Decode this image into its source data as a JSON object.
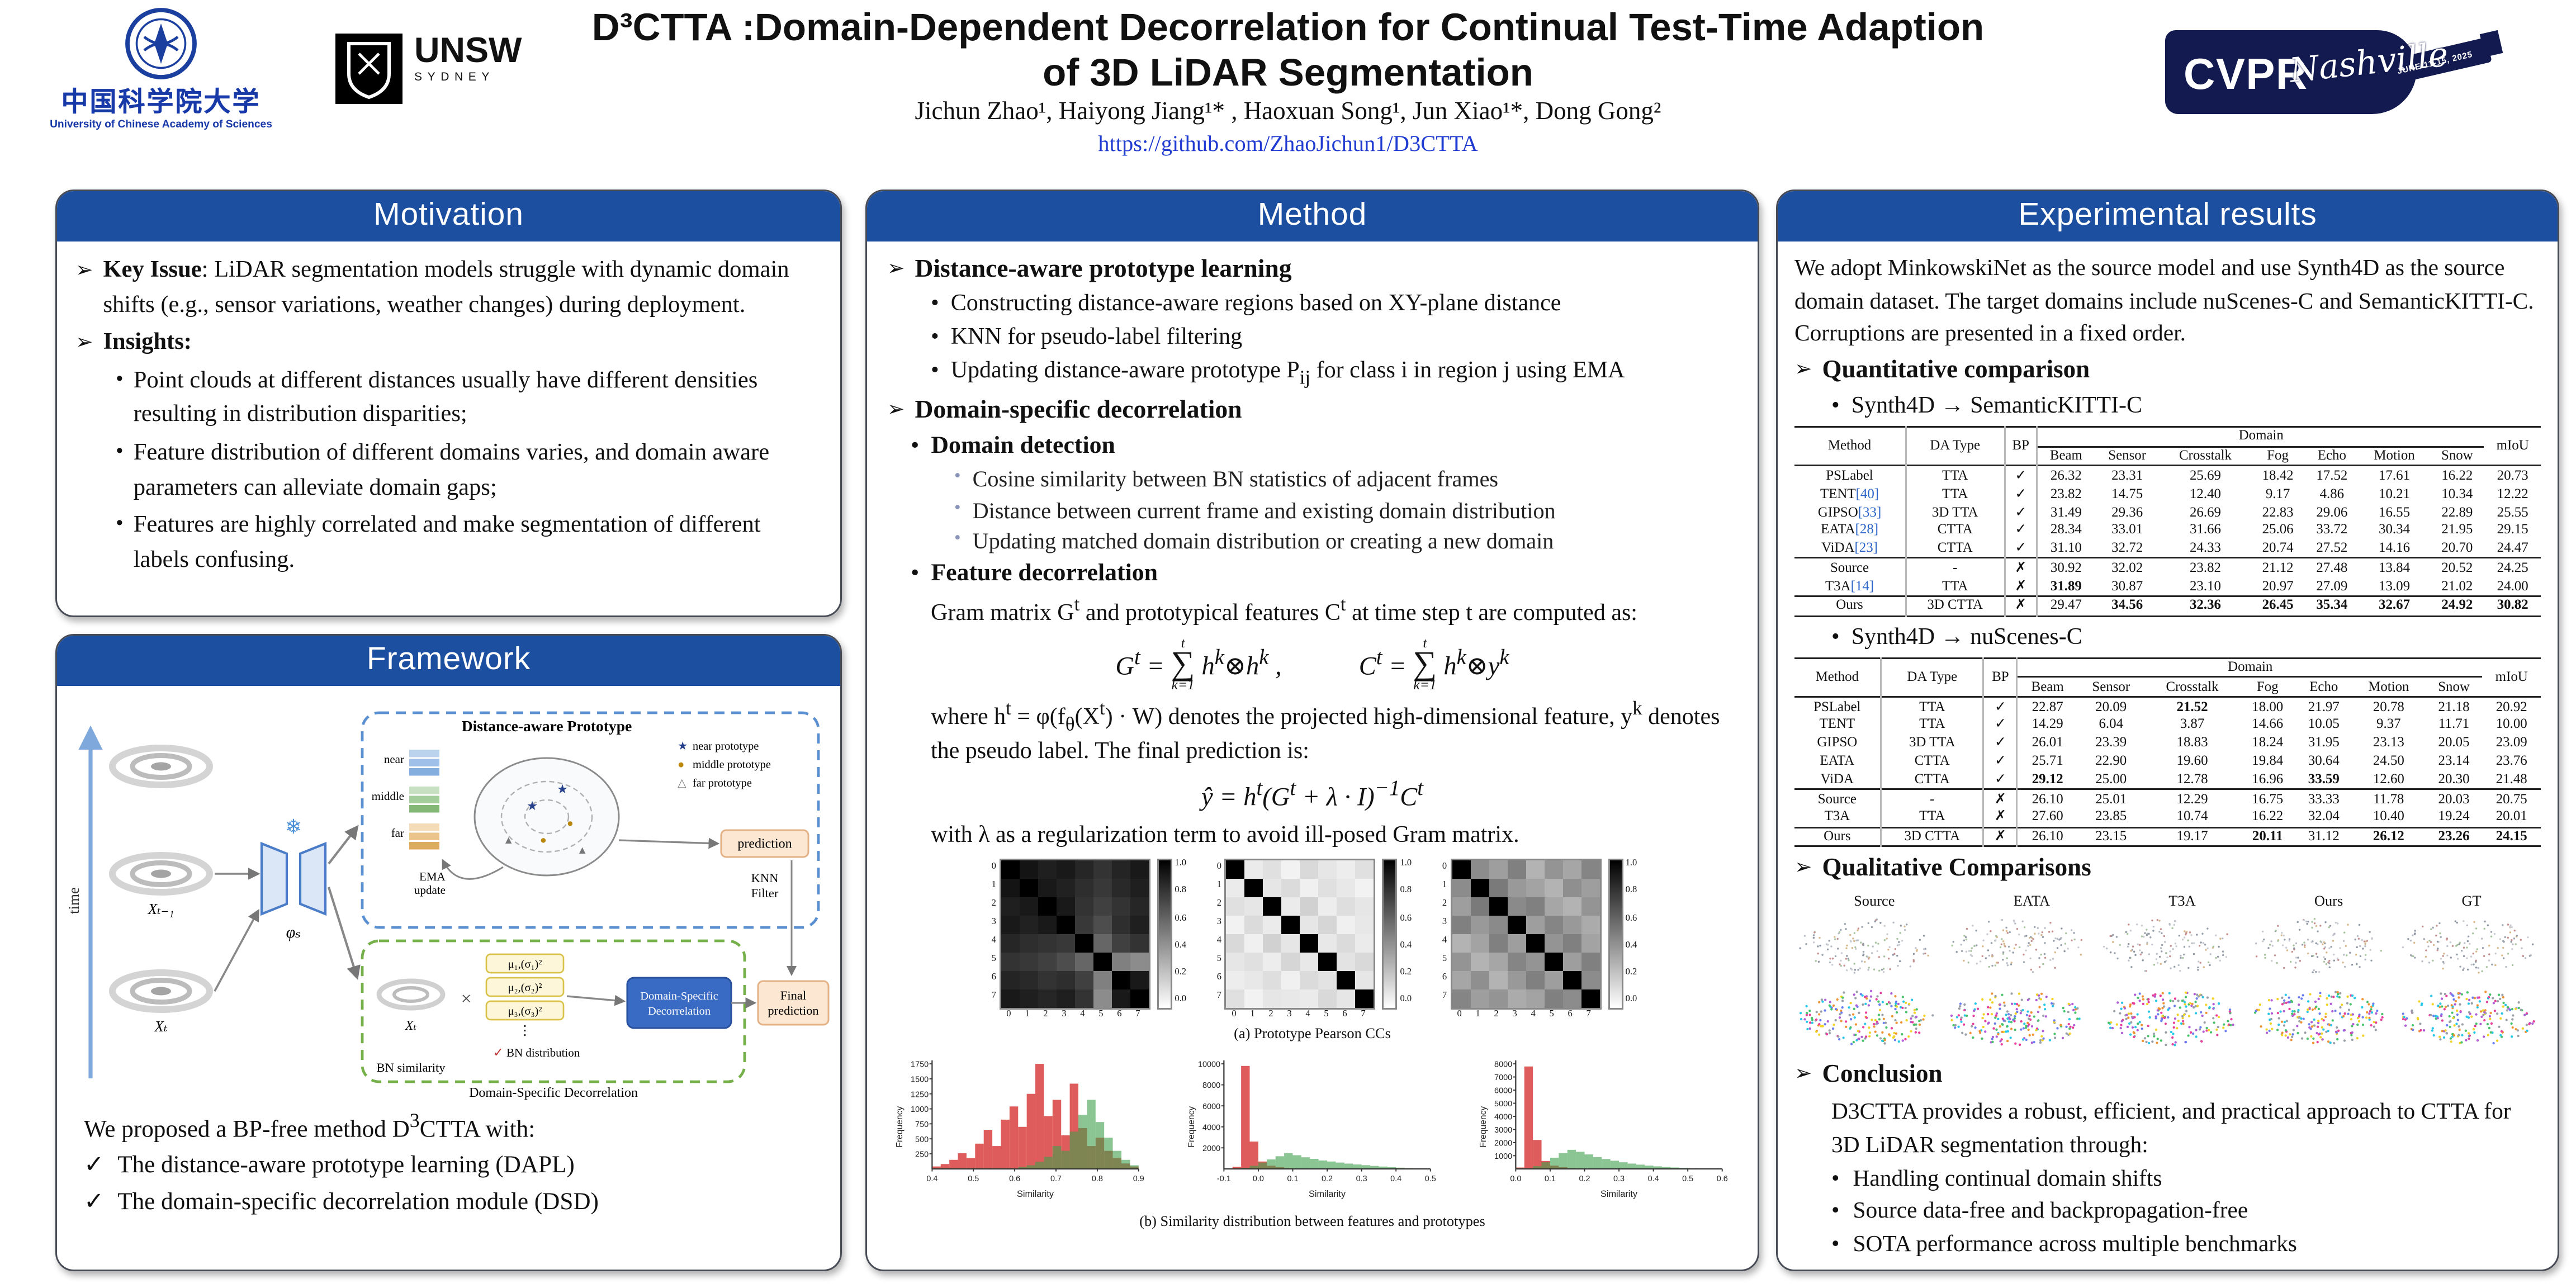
{
  "glyphs": {
    "arrow": "➢",
    "bullet": "•",
    "check": "✓",
    "cross": "✗",
    "sum": "∑"
  },
  "header": {
    "title_line1": "D³CTTA :Domain-Dependent Decorrelation for Continual Test-Time Adaption",
    "title_line2": "of 3D LiDAR Segmentation",
    "authors": "Jichun Zhao¹, Haiyong Jiang¹* , Haoxuan Song¹, Jun Xiao¹*, Dong Gong²",
    "link": "https://github.com/ZhaoJichun1/D3CTTA",
    "ucas": {
      "cn": "中国科学院大学",
      "en": "University of Chinese Academy of Sciences"
    },
    "unsw": {
      "name": "UNSW",
      "sub": "SYDNEY"
    },
    "cvpr": {
      "name": "CVPR",
      "city": "Nashville",
      "date": "JUNE 11-15, 2025"
    }
  },
  "motivation": {
    "title": "Motivation",
    "key_issue_label": "Key Issue",
    "key_issue": ": LiDAR segmentation models struggle with dynamic domain shifts (e.g., sensor variations, weather changes) during deployment.",
    "insights_label": "Insights:",
    "insights": [
      "Point clouds at different distances usually have different densities resulting in distribution disparities;",
      "Feature distribution of different domains varies, and domain aware parameters can alleviate domain gaps;",
      "Features are highly correlated and make segmentation of different labels confusing."
    ]
  },
  "framework": {
    "title": "Framework",
    "labels": {
      "time": "time",
      "xt1": "Xₜ₋₁",
      "xt": "Xₜ",
      "phi": "φₛ",
      "snow": "❄",
      "dap_title": "Distance-aware Prototype",
      "near": "near",
      "middle": "middle",
      "far": "far",
      "ema1": "EMA",
      "ema2": "update",
      "prediction": "prediction",
      "knn1": "KNN",
      "knn2": "Filter",
      "mu1": "μ₁,(σ₁)²",
      "mu2": "μ₂,(σ₂)²",
      "mu3": "μ₃,(σ₃)²",
      "dots": "⋮",
      "bn_check": "✓",
      "bn_dist": "BN distribution",
      "bn_sim": "BN similarity",
      "times": "×",
      "dsd1": "Domain-Specific",
      "dsd2": "Decorrelation",
      "final1": "Final",
      "final2": "prediction",
      "module_caption": "Domain-Specific Decorrelation"
    },
    "legend": {
      "m1": "★",
      "t1": "near prototype",
      "m2": "●",
      "t2": "middle prototype",
      "m3": "△",
      "t3": "far prototype"
    },
    "markers": {
      "star": "★",
      "dot": "●",
      "tri": "▲"
    },
    "summary_intro": "We proposed a BP-free method D^{3}CTTA with:",
    "summary_items": [
      "The distance-aware prototype learning (DAPL)",
      "The domain-specific decorrelation module (DSD)"
    ]
  },
  "method": {
    "title": "Method",
    "s1_title": "Distance-aware prototype learning",
    "s1_items": [
      "Constructing distance-aware regions based on XY-plane distance",
      "KNN for pseudo-label filtering",
      "Updating distance-aware prototype P_{ij} for class i in region j using EMA"
    ],
    "s2_title": "Domain-specific decorrelation",
    "s2a_title": "Domain detection",
    "s2a_items": [
      "Cosine similarity between BN statistics of adjacent frames",
      "Distance between current frame and existing domain distribution",
      "Updating matched domain distribution or creating a new domain"
    ],
    "s2b_title": "Feature decorrelation",
    "s2b_intro": "Gram matrix G^{t} and prototypical features C^{t} at time step t are computed as:",
    "f1a": "G^{t} =",
    "f1b": "h^{k}⊗h^{k} ,",
    "f1c": "C^{t} =",
    "f1d": "h^{k}⊗y^{k}",
    "sum_top": "t",
    "sum_bot": "k=1",
    "where_text": "where h^{t} = φ(f_{θ}(X^{t}) · W) denotes the projected high-dimensional feature, y^{k} denotes the pseudo label. The final prediction is:",
    "formula2": "ŷ = h^{t}(G^{t} + λ · I)^{−1}C^{t}",
    "lambda_text": "with λ as a regularization term to avoid ill-posed Gram matrix.",
    "fig_a_caption": "(a) Prototype Pearson CCs",
    "fig_b_caption": "(b) Similarity distribution between features and prototypes",
    "hm_ticks": [
      "0",
      "1",
      "2",
      "3",
      "4",
      "5",
      "6",
      "7"
    ],
    "cbar_labels": [
      "1.0",
      "0.8",
      "0.6",
      "0.4",
      "0.2",
      "0.0"
    ],
    "heatmaps": [
      [
        [
          1,
          0.92,
          0.88,
          0.9,
          0.85,
          0.8,
          0.86,
          0.9
        ],
        [
          0.92,
          1,
          0.9,
          0.87,
          0.82,
          0.78,
          0.84,
          0.88
        ],
        [
          0.88,
          0.9,
          1,
          0.9,
          0.8,
          0.75,
          0.8,
          0.85
        ],
        [
          0.9,
          0.87,
          0.9,
          1,
          0.78,
          0.7,
          0.82,
          0.88
        ],
        [
          0.85,
          0.82,
          0.8,
          0.78,
          1,
          0.6,
          0.75,
          0.8
        ],
        [
          0.8,
          0.78,
          0.75,
          0.7,
          0.6,
          1,
          0.5,
          0.45
        ],
        [
          0.86,
          0.84,
          0.8,
          0.82,
          0.75,
          0.5,
          1,
          0.9
        ],
        [
          0.9,
          0.88,
          0.85,
          0.88,
          0.8,
          0.45,
          0.9,
          1
        ]
      ],
      [
        [
          1,
          0.08,
          0.12,
          0.05,
          0.15,
          0.1,
          0.07,
          0.12
        ],
        [
          0.08,
          1,
          0.1,
          0.14,
          0.06,
          0.12,
          0.09,
          0.05
        ],
        [
          0.12,
          0.1,
          1,
          0.08,
          0.18,
          0.07,
          0.13,
          0.1
        ],
        [
          0.05,
          0.14,
          0.08,
          1,
          0.1,
          0.16,
          0.06,
          0.09
        ],
        [
          0.15,
          0.06,
          0.18,
          0.1,
          1,
          0.09,
          0.14,
          0.08
        ],
        [
          0.1,
          0.12,
          0.07,
          0.16,
          0.09,
          1,
          0.11,
          0.15
        ],
        [
          0.07,
          0.09,
          0.13,
          0.06,
          0.14,
          0.11,
          1,
          0.1
        ],
        [
          0.12,
          0.05,
          0.1,
          0.09,
          0.08,
          0.15,
          0.1,
          1
        ]
      ],
      [
        [
          1,
          0.45,
          0.38,
          0.5,
          0.3,
          0.42,
          0.35,
          0.48
        ],
        [
          0.45,
          1,
          0.52,
          0.4,
          0.36,
          0.3,
          0.44,
          0.38
        ],
        [
          0.38,
          0.52,
          1,
          0.46,
          0.5,
          0.35,
          0.3,
          0.42
        ],
        [
          0.5,
          0.4,
          0.46,
          1,
          0.38,
          0.48,
          0.4,
          0.33
        ],
        [
          0.3,
          0.36,
          0.5,
          0.38,
          1,
          0.42,
          0.5,
          0.36
        ],
        [
          0.42,
          0.3,
          0.35,
          0.48,
          0.42,
          1,
          0.38,
          0.5
        ],
        [
          0.35,
          0.44,
          0.3,
          0.4,
          0.5,
          0.38,
          1,
          0.45
        ],
        [
          0.48,
          0.38,
          0.42,
          0.33,
          0.36,
          0.5,
          0.45,
          1
        ]
      ]
    ],
    "hist_ylabel": "Frequency",
    "hist_xlabel": "Similarity",
    "hists": [
      {
        "max": 1750,
        "yticks": [
          "1750",
          "1500",
          "1250",
          "1000",
          "750",
          "500",
          "250"
        ],
        "xticks": [
          "0.4",
          "0.5",
          "0.6",
          "0.7",
          "0.8",
          "0.9"
        ],
        "red": [
          40,
          80,
          150,
          260,
          180,
          420,
          650,
          380,
          820,
          1040,
          700,
          1250,
          1750,
          880,
          1150,
          560,
          1420,
          680,
          380,
          520,
          300,
          180,
          90,
          40
        ],
        "green": [
          0,
          0,
          0,
          0,
          0,
          0,
          0,
          0,
          0,
          0,
          30,
          60,
          120,
          200,
          380,
          300,
          620,
          900,
          1150,
          780,
          520,
          300,
          150,
          60
        ]
      },
      {
        "max": 10000,
        "yticks": [
          "10000",
          "8000",
          "6000",
          "4000",
          "2000"
        ],
        "xticks": [
          "-0.1",
          "0.0",
          "0.1",
          "0.2",
          "0.3",
          "0.4",
          "0.5"
        ],
        "red": [
          0,
          200,
          9800,
          2600,
          700,
          300,
          150,
          80,
          50,
          30,
          20,
          10,
          8,
          6,
          5,
          4,
          3,
          2,
          2,
          1,
          1,
          0,
          0,
          0
        ],
        "green": [
          0,
          0,
          100,
          300,
          600,
          900,
          1200,
          1500,
          1300,
          1100,
          950,
          800,
          700,
          600,
          500,
          420,
          350,
          280,
          220,
          160,
          110,
          70,
          40,
          20
        ]
      },
      {
        "max": 8000,
        "yticks": [
          "8000",
          "7000",
          "6000",
          "5000",
          "4000",
          "3000",
          "2000",
          "1000"
        ],
        "xticks": [
          "0.0",
          "0.1",
          "0.2",
          "0.3",
          "0.4",
          "0.5",
          "0.6"
        ],
        "red": [
          100,
          7800,
          2200,
          600,
          250,
          120,
          60,
          40,
          25,
          15,
          10,
          8,
          6,
          5,
          4,
          3,
          2,
          2,
          1,
          1,
          0,
          0,
          0,
          0
        ],
        "green": [
          0,
          50,
          200,
          500,
          850,
          1200,
          1450,
          1300,
          1100,
          900,
          750,
          620,
          500,
          400,
          320,
          250,
          190,
          140,
          100,
          70,
          45,
          25,
          12,
          5
        ]
      }
    ]
  },
  "results": {
    "title": "Experimental results",
    "intro": "We adopt MinkowskiNet as the source model and use Synth4D as the source domain dataset. The target domains include nuScenes-C and SemanticKITTI-C. Corruptions are presented in a fixed order.",
    "quant_title": "Quantitative comparison",
    "t1_caption": "Synth4D → SemanticKITTI-C",
    "t2_caption": "Synth4D → nuScenes-C",
    "table1": {
      "group_header": "Domain",
      "pre_columns": [
        "Method",
        "DA Type",
        "BP"
      ],
      "domain_cols": [
        "Beam",
        "Sensor",
        "Crosstalk",
        "Fog",
        "Echo",
        "Motion",
        "Snow"
      ],
      "miou": "mIoU",
      "rows": [
        [
          "PSLabel",
          "TTA",
          "✓",
          "26.32",
          "23.31",
          "25.69",
          "18.42",
          "17.52",
          "17.61",
          "16.22",
          "20.73"
        ],
        [
          "TENT[40]",
          "TTA",
          "✓",
          "23.82",
          "14.75",
          "12.40",
          "9.17",
          "4.86",
          "10.21",
          "10.34",
          "12.22"
        ],
        [
          "GIPSO[33]",
          "3D TTA",
          "✓",
          "31.49",
          "29.36",
          "26.69",
          "22.83",
          "29.06",
          "16.55",
          "22.89",
          "25.55"
        ],
        [
          "EATA[28]",
          "CTTA",
          "✓",
          "28.34",
          "33.01",
          "31.66",
          "25.06",
          "33.72",
          "30.34",
          "21.95",
          "29.15"
        ],
        [
          "ViDA[23]",
          "CTTA",
          "✓",
          "31.10",
          "32.72",
          "24.33",
          "20.74",
          "27.52",
          "14.16",
          "20.70",
          "24.47"
        ],
        [
          "Source",
          "-",
          "✗",
          "30.92",
          "32.02",
          "23.82",
          "21.12",
          "27.48",
          "13.84",
          "20.52",
          "24.25"
        ],
        [
          "T3A[14]",
          "TTA",
          "✗",
          "31.89",
          "30.87",
          "23.10",
          "20.97",
          "27.09",
          "13.09",
          "21.02",
          "24.00"
        ],
        [
          "Ours",
          "3D CTTA",
          "✗",
          "29.47",
          "34.56",
          "32.36",
          "26.45",
          "35.34",
          "32.67",
          "24.92",
          "30.82"
        ]
      ],
      "bold": [
        [
          6,
          3
        ],
        [
          7,
          4
        ],
        [
          7,
          5
        ],
        [
          7,
          6
        ],
        [
          7,
          7
        ],
        [
          7,
          8
        ],
        [
          7,
          9
        ],
        [
          7,
          10
        ]
      ],
      "separators": [
        5,
        7
      ]
    },
    "table2": {
      "group_header": "Domain",
      "pre_columns": [
        "Method",
        "DA Type",
        "BP"
      ],
      "domain_cols": [
        "Beam",
        "Sensor",
        "Crosstalk",
        "Fog",
        "Echo",
        "Motion",
        "Snow"
      ],
      "miou": "mIoU",
      "rows": [
        [
          "PSLabel",
          "TTA",
          "✓",
          "22.87",
          "20.09",
          "21.52",
          "18.00",
          "21.97",
          "20.78",
          "21.18",
          "20.92"
        ],
        [
          "TENT",
          "TTA",
          "✓",
          "14.29",
          "6.04",
          "3.87",
          "14.66",
          "10.05",
          "9.37",
          "11.71",
          "10.00"
        ],
        [
          "GIPSO",
          "3D TTA",
          "✓",
          "26.01",
          "23.39",
          "18.83",
          "18.24",
          "31.95",
          "23.13",
          "20.05",
          "23.09"
        ],
        [
          "EATA",
          "CTTA",
          "✓",
          "25.71",
          "22.90",
          "19.60",
          "19.84",
          "30.64",
          "24.50",
          "23.14",
          "23.76"
        ],
        [
          "ViDA",
          "CTTA",
          "✓",
          "29.12",
          "25.00",
          "12.78",
          "16.96",
          "33.59",
          "12.60",
          "20.30",
          "21.48"
        ],
        [
          "Source",
          "-",
          "✗",
          "26.10",
          "25.01",
          "12.29",
          "16.75",
          "33.33",
          "11.78",
          "20.03",
          "20.75"
        ],
        [
          "T3A",
          "TTA",
          "✗",
          "27.60",
          "23.85",
          "10.74",
          "16.22",
          "32.04",
          "10.40",
          "19.24",
          "20.01"
        ],
        [
          "Ours",
          "3D CTTA",
          "✗",
          "26.10",
          "23.15",
          "19.17",
          "20.11",
          "31.12",
          "26.12",
          "23.26",
          "24.15"
        ]
      ],
      "bold": [
        [
          0,
          5
        ],
        [
          4,
          3
        ],
        [
          4,
          7
        ],
        [
          7,
          6
        ],
        [
          7,
          8
        ],
        [
          7,
          9
        ],
        [
          7,
          10
        ]
      ],
      "separators": [
        5,
        7
      ]
    },
    "qual_title": "Qualitative Comparisons",
    "qual_labels": [
      "Source",
      "EATA",
      "T3A",
      "Ours",
      "GT"
    ],
    "conclusion_title": "Conclusion",
    "conclusion_text": "D3CTTA provides a robust, efficient, and practical approach to CTTA for 3D LiDAR segmentation through:",
    "conclusion_items": [
      "Handling continual domain shifts",
      "Source data-free and backpropagation-free",
      "SOTA performance across multiple benchmarks"
    ]
  }
}
